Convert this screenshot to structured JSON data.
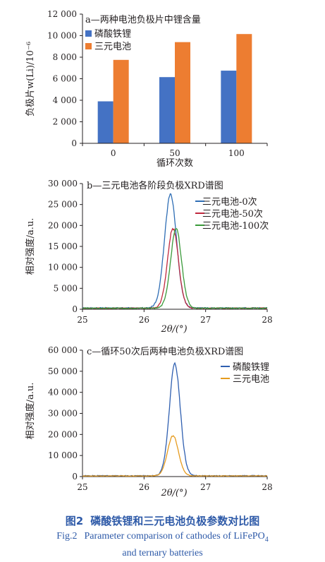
{
  "chart_data": [
    {
      "type": "bar",
      "title": "a—两种电池负极片中锂含量",
      "xlabel": "循环次数",
      "ylabel": "负极片w(Li)/10⁻⁶",
      "categories": [
        "0",
        "50",
        "100"
      ],
      "yticks": [
        "0",
        "2 000",
        "4 000",
        "6 000",
        "8 000",
        "10 000",
        "12 000"
      ],
      "ylim": [
        0,
        12000
      ],
      "legend_position": "top-left",
      "series": [
        {
          "name": "磷酸铁锂",
          "color": "#4472c4",
          "values": [
            3900,
            6150,
            6750
          ]
        },
        {
          "name": "三元电池",
          "color": "#ed7d31",
          "values": [
            7750,
            9400,
            10150
          ]
        }
      ]
    },
    {
      "type": "line",
      "title": "b—三元电池各阶段负极XRD谱图",
      "xlabel": "2θ/(°)",
      "ylabel": "相对强度/a.u.",
      "xticks": [
        "25",
        "26",
        "27",
        "28"
      ],
      "yticks": [
        "0",
        "5 000",
        "10 000",
        "15 000",
        "20 000",
        "25 000",
        "30 000"
      ],
      "xlim": [
        25,
        28
      ],
      "ylim": [
        0,
        30000
      ],
      "legend_position": "top-right",
      "series": [
        {
          "name": "三元电池-0次",
          "color": "#2f6eb5",
          "peak_x": 26.43,
          "peak_y": 27500,
          "sigma": 0.11,
          "baseline": 300
        },
        {
          "name": "三元电池-50次",
          "color": "#c0283e",
          "peak_x": 26.47,
          "peak_y": 19300,
          "sigma": 0.1,
          "baseline": 250
        },
        {
          "name": "三元电池-100次",
          "color": "#3a9a3a",
          "peak_x": 26.52,
          "peak_y": 19200,
          "sigma": 0.1,
          "baseline": 250
        }
      ]
    },
    {
      "type": "line",
      "title": "c—循环50次后两种电池负极XRD谱图",
      "xlabel": "2θ/(°)",
      "ylabel": "相对强度/a.u.",
      "xticks": [
        "25",
        "26",
        "27",
        "28"
      ],
      "yticks": [
        "0",
        "10 000",
        "20 000",
        "30 000",
        "40 000",
        "50 000",
        "60 000"
      ],
      "xlim": [
        25,
        28
      ],
      "ylim": [
        0,
        60000
      ],
      "legend_position": "top-right",
      "series": [
        {
          "name": "磷酸铁锂",
          "color": "#2f5fb0",
          "peak_x": 26.5,
          "peak_y": 53500,
          "sigma": 0.1,
          "baseline": 400
        },
        {
          "name": "三元电池",
          "color": "#e69b1e",
          "peak_x": 26.47,
          "peak_y": 19400,
          "sigma": 0.1,
          "baseline": 300
        }
      ]
    }
  ],
  "caption": {
    "cn_number": "图2",
    "cn_text": "磷酸铁锂和三元电池负极参数对比图",
    "en_number": "Fig.2",
    "en_text_1": "Parameter comparison of cathodes of LiFePO",
    "en_sub": "4",
    "en_text_2": "and ternary batteries"
  }
}
